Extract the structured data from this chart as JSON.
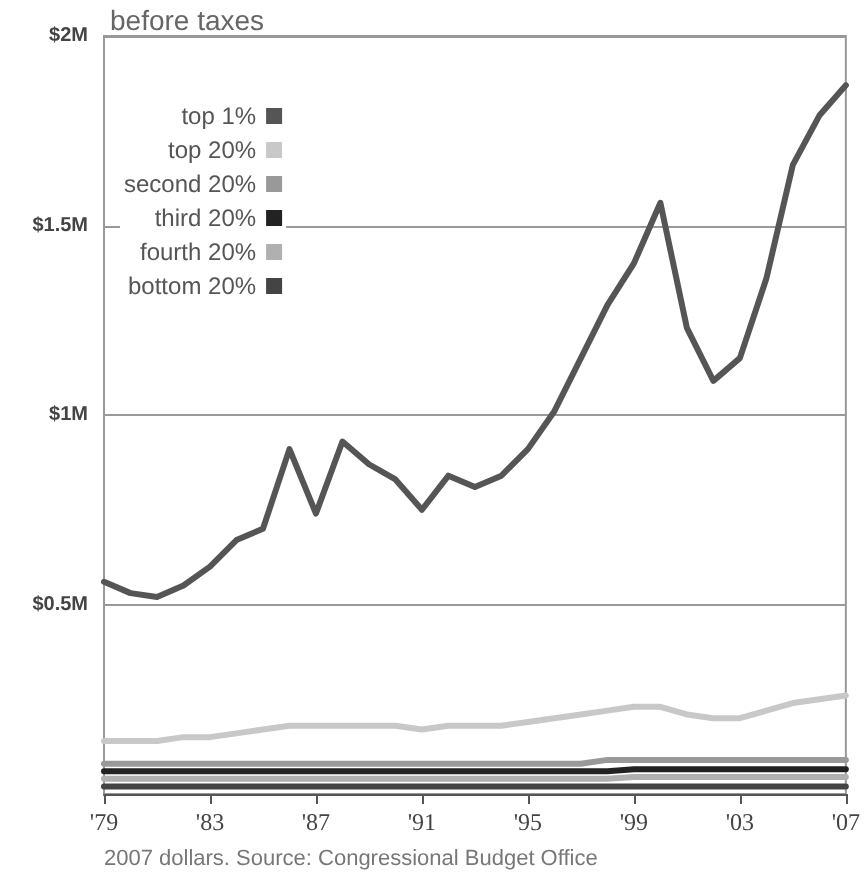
{
  "chart_data": {
    "type": "line",
    "title": "before taxes",
    "x": [
      1979,
      1980,
      1981,
      1982,
      1983,
      1984,
      1985,
      1986,
      1987,
      1988,
      1989,
      1990,
      1991,
      1992,
      1993,
      1994,
      1995,
      1996,
      1997,
      1998,
      1999,
      2000,
      2001,
      2002,
      2003,
      2004,
      2005,
      2006,
      2007
    ],
    "series": [
      {
        "name": "top 1%",
        "color": "#555555",
        "values": [
          0.56,
          0.53,
          0.52,
          0.55,
          0.6,
          0.67,
          0.7,
          0.91,
          0.74,
          0.93,
          0.87,
          0.83,
          0.75,
          0.84,
          0.81,
          0.84,
          0.91,
          1.01,
          1.15,
          1.29,
          1.4,
          1.56,
          1.23,
          1.09,
          1.15,
          1.36,
          1.66,
          1.79,
          1.87
        ]
      },
      {
        "name": "top 20%",
        "color": "#c8c8c8",
        "values": [
          0.14,
          0.14,
          0.14,
          0.15,
          0.15,
          0.16,
          0.17,
          0.18,
          0.18,
          0.18,
          0.18,
          0.18,
          0.17,
          0.18,
          0.18,
          0.18,
          0.19,
          0.2,
          0.21,
          0.22,
          0.23,
          0.23,
          0.21,
          0.2,
          0.2,
          0.22,
          0.24,
          0.25,
          0.26
        ]
      },
      {
        "name": "second 20%",
        "color": "#999999",
        "values": [
          0.08,
          0.08,
          0.08,
          0.08,
          0.08,
          0.08,
          0.08,
          0.08,
          0.08,
          0.08,
          0.08,
          0.08,
          0.08,
          0.08,
          0.08,
          0.08,
          0.08,
          0.08,
          0.08,
          0.09,
          0.09,
          0.09,
          0.09,
          0.09,
          0.09,
          0.09,
          0.09,
          0.09,
          0.09
        ]
      },
      {
        "name": "third 20%",
        "color": "#222222",
        "values": [
          0.06,
          0.06,
          0.06,
          0.06,
          0.06,
          0.06,
          0.06,
          0.06,
          0.06,
          0.06,
          0.06,
          0.06,
          0.06,
          0.06,
          0.06,
          0.06,
          0.06,
          0.06,
          0.06,
          0.06,
          0.065,
          0.065,
          0.065,
          0.065,
          0.065,
          0.065,
          0.065,
          0.065,
          0.065
        ]
      },
      {
        "name": "fourth 20%",
        "color": "#b0b0b0",
        "values": [
          0.04,
          0.04,
          0.04,
          0.04,
          0.04,
          0.04,
          0.04,
          0.04,
          0.04,
          0.04,
          0.04,
          0.04,
          0.04,
          0.04,
          0.04,
          0.04,
          0.04,
          0.04,
          0.04,
          0.04,
          0.045,
          0.045,
          0.045,
          0.045,
          0.045,
          0.045,
          0.045,
          0.045,
          0.045
        ]
      },
      {
        "name": "bottom 20%",
        "color": "#444444",
        "values": [
          0.02,
          0.02,
          0.02,
          0.02,
          0.02,
          0.02,
          0.02,
          0.02,
          0.02,
          0.02,
          0.02,
          0.02,
          0.02,
          0.02,
          0.02,
          0.02,
          0.02,
          0.02,
          0.02,
          0.02,
          0.02,
          0.02,
          0.02,
          0.02,
          0.02,
          0.02,
          0.02,
          0.02,
          0.02
        ]
      }
    ],
    "xlim": [
      1979,
      2007
    ],
    "xticks": [
      {
        "value": 1979,
        "label": "'79"
      },
      {
        "value": 1983,
        "label": "'83"
      },
      {
        "value": 1987,
        "label": "'87"
      },
      {
        "value": 1991,
        "label": "'91"
      },
      {
        "value": 1995,
        "label": "'95"
      },
      {
        "value": 1999,
        "label": "'99"
      },
      {
        "value": 2003,
        "label": "'03"
      },
      {
        "value": 2007,
        "label": "'07"
      }
    ],
    "ylim": [
      0,
      2
    ],
    "yticks": [
      {
        "value": 0.5,
        "label": "$0.5M"
      },
      {
        "value": 1,
        "label": "$1M"
      },
      {
        "value": 1.5,
        "label": "$1.5M"
      },
      {
        "value": 2,
        "label": "$2M"
      }
    ],
    "grid": "y",
    "legend": "top left",
    "marker": "none",
    "line_style": "solid",
    "annotations": [
      "2007 dollars. Source: Congressional Budget Office"
    ]
  }
}
